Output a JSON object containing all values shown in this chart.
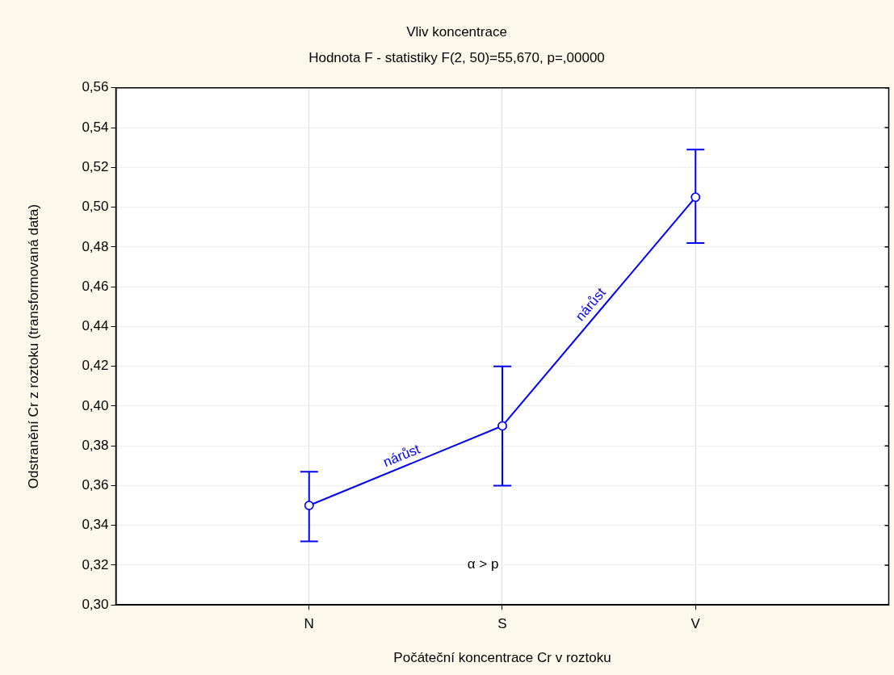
{
  "chart_data": {
    "type": "line",
    "title": "Vliv koncentrace",
    "subtitle": "Hodnota F - statistiky F(2, 50)=55,670, p=,00000",
    "xlabel": "Počáteční koncentrace Cr v roztoku",
    "ylabel": "Odstranění Cr z roztoku (transformovaná data)",
    "categories": [
      "N",
      "S",
      "V"
    ],
    "series": [
      {
        "color": "#0000ff",
        "values": [
          0.35,
          0.39,
          0.505
        ],
        "errors": [
          [
            0.332,
            0.367
          ],
          [
            0.36,
            0.42
          ],
          [
            0.482,
            0.529
          ]
        ]
      }
    ],
    "annotations": [
      "nárůst",
      "nárůst",
      "α > p"
    ],
    "ylim": [
      0.3,
      0.56
    ],
    "yticks": [
      {
        "value": 0.3,
        "label": "0,30"
      },
      {
        "value": 0.32,
        "label": "0,32"
      },
      {
        "value": 0.34,
        "label": "0,34"
      },
      {
        "value": 0.36,
        "label": "0,36"
      },
      {
        "value": 0.38,
        "label": "0,38"
      },
      {
        "value": 0.4,
        "label": "0,40"
      },
      {
        "value": 0.42,
        "label": "0,42"
      },
      {
        "value": 0.44,
        "label": "0,44"
      },
      {
        "value": 0.46,
        "label": "0,46"
      },
      {
        "value": 0.48,
        "label": "0,48"
      },
      {
        "value": 0.5,
        "label": "0,50"
      },
      {
        "value": 0.52,
        "label": "0,52"
      },
      {
        "value": 0.54,
        "label": "0,54"
      },
      {
        "value": 0.56,
        "label": "0,56"
      }
    ],
    "grid": true,
    "legend": false,
    "marker": "circle",
    "line_style": "solid"
  }
}
